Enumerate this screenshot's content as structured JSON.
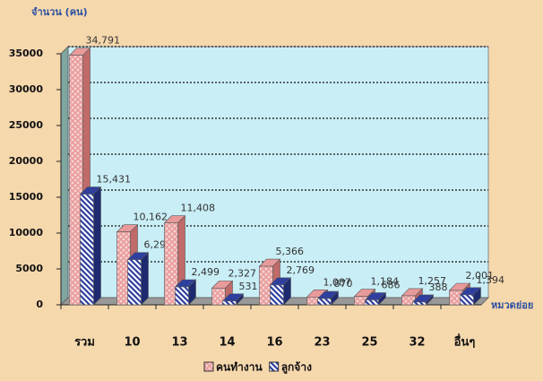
{
  "chart_data": {
    "type": "bar3d",
    "y_label": "จำนวน (คน)",
    "x_label": "หมวดย่อย",
    "categories": [
      "รวม",
      "10",
      "13",
      "14",
      "16",
      "23",
      "25",
      "32",
      "อื่นๆ"
    ],
    "series": [
      {
        "name": "คนทำงาน",
        "color": "#e89a9a",
        "values": [
          34791,
          10162,
          11408,
          2327,
          5366,
          1087,
          1184,
          1257,
          2001
        ],
        "value_labels": [
          "34,791",
          "10,162",
          "11,408",
          "2,327",
          "5,366",
          "1,087",
          "1,184",
          "1,257",
          "2,001"
        ]
      },
      {
        "name": "ลูกจ้าง",
        "color": "#2f3f9e",
        "values": [
          15431,
          6296,
          2499,
          531,
          2769,
          870,
          686,
          388,
          1394
        ],
        "value_labels": [
          "15,431",
          "6,296",
          "2,499",
          "531",
          "2,769",
          "870",
          "686",
          "388",
          "1,394"
        ]
      }
    ],
    "ylim": [
      0,
      35000
    ],
    "yticks": [
      0,
      5000,
      10000,
      15000,
      20000,
      25000,
      30000,
      35000
    ],
    "grid": true,
    "legend": "bottom"
  }
}
